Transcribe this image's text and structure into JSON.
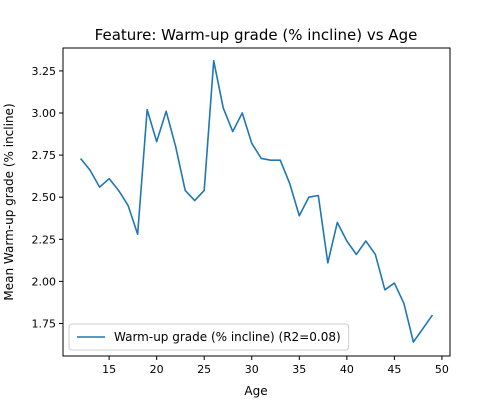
{
  "chart_data": {
    "type": "line",
    "title": "Feature: Warm-up grade (% incline) vs Age",
    "xlabel": "Age",
    "ylabel": "Mean Warm-up grade (% incline)",
    "xlim": [
      10.15,
      50.85
    ],
    "ylim": [
      1.557,
      3.386
    ],
    "x_ticks": [
      15,
      20,
      25,
      30,
      35,
      40,
      45,
      50
    ],
    "y_ticks": [
      1.75,
      2.0,
      2.25,
      2.5,
      2.75,
      3.0,
      3.25
    ],
    "x_tick_labels": [
      "15",
      "20",
      "25",
      "30",
      "35",
      "40",
      "45",
      "50"
    ],
    "y_tick_labels": [
      "1.75",
      "2.00",
      "2.25",
      "2.50",
      "2.75",
      "3.00",
      "3.25"
    ],
    "grid": false,
    "legend_position": "lower-left",
    "series": [
      {
        "name": "Warm-up grade (% incline) (R2=0.08)",
        "color": "#1f77b4",
        "x": [
          12,
          13,
          14,
          15,
          16,
          17,
          18,
          19,
          20,
          21,
          22,
          23,
          24,
          25,
          26,
          27,
          28,
          29,
          30,
          31,
          32,
          33,
          34,
          35,
          36,
          37,
          38,
          39,
          40,
          41,
          42,
          43,
          44,
          45,
          46,
          47,
          48,
          49
        ],
        "y": [
          2.73,
          2.66,
          2.56,
          2.61,
          2.54,
          2.45,
          2.28,
          3.02,
          2.83,
          3.01,
          2.8,
          2.54,
          2.48,
          2.54,
          3.31,
          3.03,
          2.89,
          3.0,
          2.82,
          2.73,
          2.72,
          2.72,
          2.58,
          2.39,
          2.5,
          2.51,
          2.11,
          2.35,
          2.24,
          2.16,
          2.24,
          2.16,
          1.95,
          1.99,
          1.87,
          1.64,
          1.72,
          1.8
        ]
      }
    ]
  }
}
